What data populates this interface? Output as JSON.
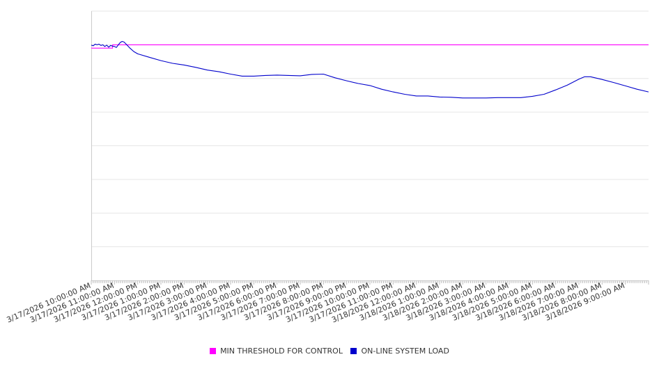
{
  "chart_data": {
    "type": "line",
    "title": "",
    "xlabel": "",
    "ylabel": "",
    "x_tick_labels": [
      "3/17/2026 10:00:00 AM",
      "3/17/2026 11:00:00 AM",
      "3/17/2026 12:00:00 PM",
      "3/17/2026 1:00:00 PM",
      "3/17/2026 2:00:00 PM",
      "3/17/2026 3:00:00 PM",
      "3/17/2026 4:00:00 PM",
      "3/17/2026 5:00:00 PM",
      "3/17/2026 6:00:00 PM",
      "3/17/2026 7:00:00 PM",
      "3/17/2026 8:00:00 PM",
      "3/17/2026 9:00:00 PM",
      "3/17/2026 10:00:00 PM",
      "3/17/2026 11:00:00 PM",
      "3/18/2026 12:00:00 AM",
      "3/18/2026 1:00:00 AM",
      "3/18/2026 2:00:00 AM",
      "3/18/2026 3:00:00 AM",
      "3/18/2026 4:00:00 AM",
      "3/18/2026 5:00:00 AM",
      "3/18/2026 6:00:00 AM",
      "3/18/2026 7:00:00 AM",
      "3/18/2026 8:00:00 AM",
      "3/18/2026 9:00:00 AM"
    ],
    "x_range": [
      "3/17/2026 10:00:00 AM",
      "3/18/2026 10:00:00 AM"
    ],
    "y_range": [
      0,
      8
    ],
    "y_gridlines": 8,
    "y_tick_labels_visible": false,
    "grid": true,
    "legend_position": "bottom-center",
    "series": [
      {
        "name": "MIN THRESHOLD FOR CONTROL",
        "color": "#ff00ff",
        "x": [
          "3/17/2026 10:00:00 AM",
          "3/17/2026 10:55:00 AM",
          "3/17/2026 10:55:00 AM",
          "3/18/2026 10:00:00 AM"
        ],
        "values": [
          6.9,
          6.9,
          7.0,
          7.0
        ]
      },
      {
        "name": "ON-LINE SYSTEM LOAD",
        "color": "#0000cc",
        "x": [
          "3/17/2026 10:00:00 AM",
          "3/17/2026 10:05:00 AM",
          "3/17/2026 10:10:00 AM",
          "3/17/2026 10:15:00 AM",
          "3/17/2026 10:20:00 AM",
          "3/17/2026 10:25:00 AM",
          "3/17/2026 10:30:00 AM",
          "3/17/2026 10:35:00 AM",
          "3/17/2026 10:40:00 AM",
          "3/17/2026 10:45:00 AM",
          "3/17/2026 10:50:00 AM",
          "3/17/2026 10:55:00 AM",
          "3/17/2026 11:00:00 AM",
          "3/17/2026 11:05:00 AM",
          "3/17/2026 11:10:00 AM",
          "3/17/2026 11:15:00 AM",
          "3/17/2026 11:20:00 AM",
          "3/17/2026 11:25:00 AM",
          "3/17/2026 11:30:00 AM",
          "3/17/2026 11:40:00 AM",
          "3/17/2026 11:50:00 AM",
          "3/17/2026 12:00:00 PM",
          "3/17/2026 12:30:00 PM",
          "3/17/2026 1:00:00 PM",
          "3/17/2026 1:30:00 PM",
          "3/17/2026 2:00:00 PM",
          "3/17/2026 2:30:00 PM",
          "3/17/2026 3:00:00 PM",
          "3/17/2026 3:30:00 PM",
          "3/17/2026 4:00:00 PM",
          "3/17/2026 4:30:00 PM",
          "3/17/2026 5:00:00 PM",
          "3/17/2026 5:30:00 PM",
          "3/17/2026 6:00:00 PM",
          "3/17/2026 6:30:00 PM",
          "3/17/2026 7:00:00 PM",
          "3/17/2026 7:30:00 PM",
          "3/17/2026 8:00:00 PM",
          "3/17/2026 8:30:00 PM",
          "3/17/2026 9:00:00 PM",
          "3/17/2026 9:30:00 PM",
          "3/17/2026 10:00:00 PM",
          "3/17/2026 10:30:00 PM",
          "3/17/2026 11:00:00 PM",
          "3/17/2026 11:30:00 PM",
          "3/18/2026 12:00:00 AM",
          "3/18/2026 12:30:00 AM",
          "3/18/2026 1:00:00 AM",
          "3/18/2026 1:30:00 AM",
          "3/18/2026 2:00:00 AM",
          "3/18/2026 2:30:00 AM",
          "3/18/2026 3:00:00 AM",
          "3/18/2026 3:30:00 AM",
          "3/18/2026 4:00:00 AM",
          "3/18/2026 4:30:00 AM",
          "3/18/2026 5:00:00 AM",
          "3/18/2026 5:30:00 AM",
          "3/18/2026 6:00:00 AM",
          "3/18/2026 6:30:00 AM",
          "3/18/2026 7:00:00 AM",
          "3/18/2026 7:15:00 AM",
          "3/18/2026 7:30:00 AM",
          "3/18/2026 8:00:00 AM",
          "3/18/2026 8:30:00 AM",
          "3/18/2026 9:00:00 AM",
          "3/18/2026 9:30:00 AM",
          "3/18/2026 10:00:00 AM"
        ],
        "values": [
          6.99,
          6.97,
          7.02,
          7.0,
          7.02,
          6.98,
          7.0,
          6.95,
          6.99,
          6.93,
          6.98,
          6.96,
          6.95,
          6.92,
          7.0,
          7.07,
          7.1,
          7.08,
          7.02,
          6.9,
          6.8,
          6.73,
          6.63,
          6.53,
          6.45,
          6.4,
          6.33,
          6.25,
          6.2,
          6.13,
          6.07,
          6.07,
          6.09,
          6.1,
          6.09,
          6.08,
          6.12,
          6.13,
          6.02,
          5.93,
          5.85,
          5.79,
          5.68,
          5.6,
          5.53,
          5.48,
          5.48,
          5.45,
          5.44,
          5.42,
          5.42,
          5.42,
          5.43,
          5.43,
          5.43,
          5.47,
          5.53,
          5.66,
          5.8,
          5.98,
          6.05,
          6.05,
          5.97,
          5.88,
          5.78,
          5.68,
          5.6
        ]
      }
    ]
  }
}
